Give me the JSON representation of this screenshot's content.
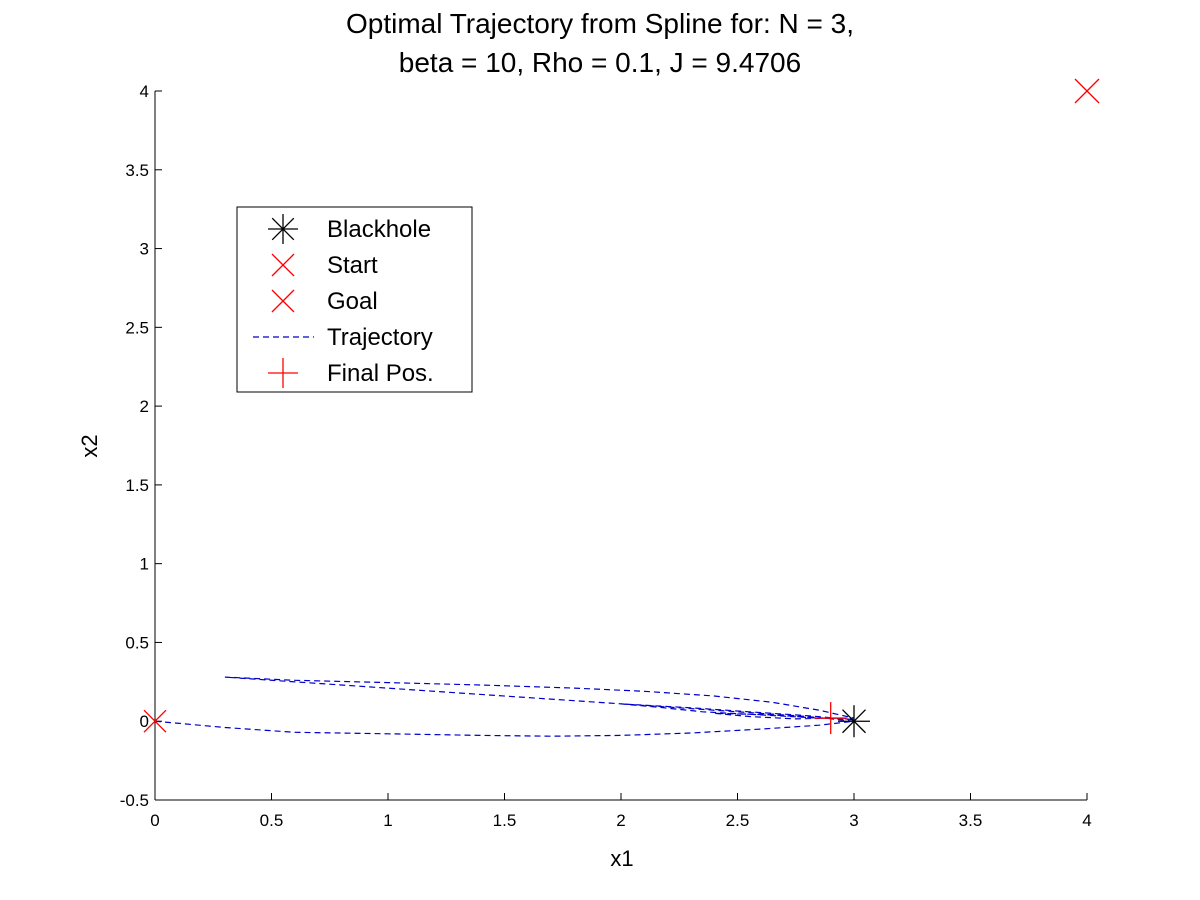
{
  "chart_data": {
    "type": "line",
    "title_lines": [
      "Optimal Trajectory from Spline for:  N = 3,",
      "beta = 10, Rho = 0.1, J = 9.4706"
    ],
    "xlabel": "x1",
    "ylabel": "x2",
    "xlim": [
      0,
      4
    ],
    "ylim": [
      -0.5,
      4
    ],
    "x_ticks": [
      0,
      0.5,
      1,
      1.5,
      2,
      2.5,
      3,
      3.5,
      4
    ],
    "x_tick_labels": [
      "0",
      "0.5",
      "1",
      "1.5",
      "2",
      "2.5",
      "3",
      "3.5",
      "4"
    ],
    "y_ticks": [
      -0.5,
      0,
      0.5,
      1,
      1.5,
      2,
      2.5,
      3,
      3.5,
      4
    ],
    "y_tick_labels": [
      "-0.5",
      "0",
      "0.5",
      "1",
      "1.5",
      "2",
      "2.5",
      "3",
      "3.5",
      "4"
    ],
    "grid": false,
    "legend_position": "upper-left",
    "legend": [
      {
        "label": "Blackhole",
        "marker": "asterisk",
        "color": "#000000"
      },
      {
        "label": "Start",
        "marker": "x",
        "color": "#ff0000"
      },
      {
        "label": "Goal",
        "marker": "x",
        "color": "#ff0000"
      },
      {
        "label": "Trajectory",
        "marker": "dashed-line",
        "color": "#0000cc"
      },
      {
        "label": "Final Pos.",
        "marker": "plus",
        "color": "#ff0000"
      }
    ],
    "markers": {
      "blackhole": {
        "x": 3,
        "y": 0
      },
      "start": {
        "x": 0,
        "y": 0
      },
      "goal": {
        "x": 4,
        "y": 4
      },
      "final_pos": {
        "x": 2.9,
        "y": 0.02
      }
    },
    "trajectory": {
      "name": "Trajectory",
      "x": [
        0,
        0.3,
        0.6,
        1.0,
        1.4,
        1.7,
        2.0,
        2.3,
        2.6,
        2.85,
        3.0,
        2.8,
        2.5,
        2.2,
        1.8,
        1.3,
        0.8,
        0.3,
        0.6,
        1.0,
        1.4,
        1.8,
        2.1,
        2.4,
        2.65,
        2.85,
        3.0,
        2.85,
        2.6,
        2.35,
        2.15,
        2.0,
        2.3,
        2.55,
        2.8,
        3.0,
        2.85,
        2.65,
        2.4,
        2.55,
        2.75,
        2.9
      ],
      "y": [
        0,
        -0.04,
        -0.07,
        -0.08,
        -0.09,
        -0.095,
        -0.09,
        -0.075,
        -0.05,
        -0.025,
        0.0,
        0.03,
        0.06,
        0.09,
        0.13,
        0.18,
        0.23,
        0.28,
        0.26,
        0.245,
        0.23,
        0.21,
        0.19,
        0.16,
        0.12,
        0.07,
        0.02,
        0.02,
        0.04,
        0.06,
        0.09,
        0.11,
        0.085,
        0.06,
        0.035,
        0.01,
        0.02,
        0.04,
        0.05,
        0.03,
        0.015,
        0.02
      ]
    },
    "colors": {
      "trajectory": "#0000cc",
      "start": "#ff0000",
      "goal": "#ff0000",
      "final_pos": "#ff0000",
      "blackhole": "#000000"
    }
  }
}
